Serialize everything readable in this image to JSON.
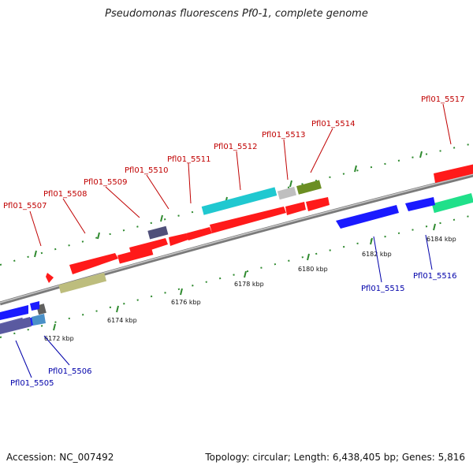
{
  "title": "Pseudomonas fluorescens Pf0-1, complete genome",
  "footer": {
    "accession": "Accession: NC_007492",
    "summary": "Topology: circular; Length: 6,438,405 bp; Genes: 5,816"
  },
  "kbp_labels": [
    "6172 kbp",
    "6174 kbp",
    "6176 kbp",
    "6178 kbp",
    "6180 kbp",
    "6182 kbp",
    "6184 kbp"
  ],
  "genes_top": [
    "Pfl01_5507",
    "Pfl01_5508",
    "Pfl01_5509",
    "Pfl01_5510",
    "Pfl01_5511",
    "Pfl01_5512",
    "Pfl01_5513",
    "Pfl01_5514",
    "Pfl01_5517"
  ],
  "genes_bottom": [
    "Pfl01_5505",
    "Pfl01_5506",
    "Pfl01_5515",
    "Pfl01_5516"
  ],
  "colors": {
    "top_label": "#c00000",
    "bottom_label": "#0000aa",
    "tick": "#2f8a2f",
    "backbone": "#8a8a8a"
  }
}
